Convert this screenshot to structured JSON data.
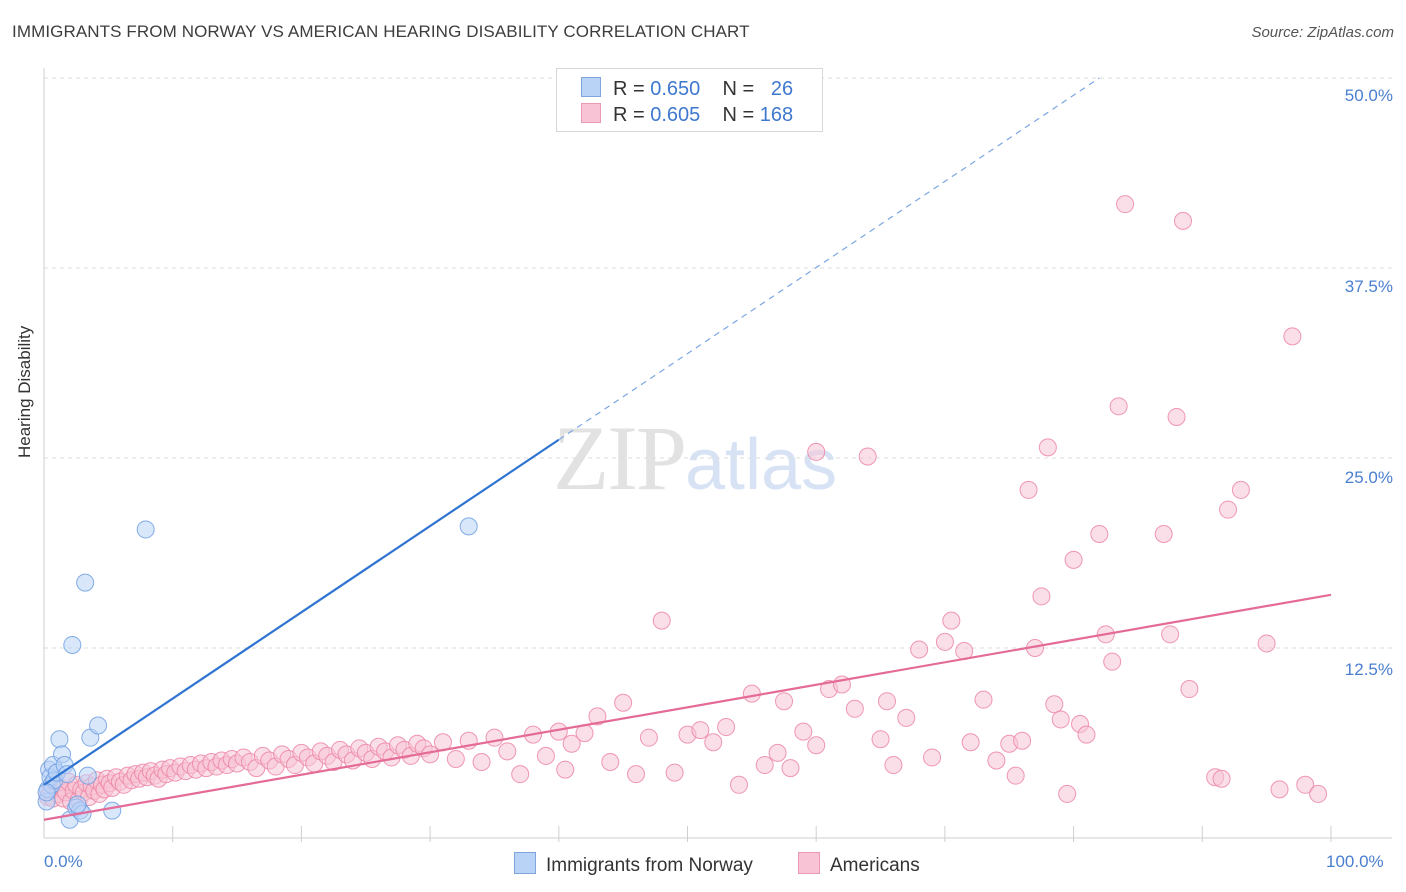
{
  "title": "IMMIGRANTS FROM NORWAY VS AMERICAN HEARING DISABILITY CORRELATION CHART",
  "source": "Source: ZipAtlas.com",
  "watermark": {
    "zip": "ZIP",
    "atlas": "atlas"
  },
  "legend_top": {
    "rows": [
      {
        "swatch_color": "#b9d3f7",
        "r_label": "R = ",
        "r_value": "0.650",
        "n_label": "N = ",
        "n_value": "26"
      },
      {
        "swatch_color": "#f8c4d5",
        "r_label": "R = ",
        "r_value": "0.605",
        "n_label": "N = ",
        "n_value": "168"
      }
    ]
  },
  "legend_bottom": [
    {
      "label": "Immigrants from Norway",
      "color": "#b9d3f7"
    },
    {
      "label": "Americans",
      "color": "#f8c4d5"
    }
  ],
  "chart_data": {
    "type": "scatter",
    "title": "IMMIGRANTS FROM NORWAY VS AMERICAN HEARING DISABILITY CORRELATION CHART",
    "xlabel": "",
    "ylabel": "Hearing Disability",
    "xlim": [
      0,
      100
    ],
    "ylim": [
      0,
      50
    ],
    "x_tick_labels": [
      "0.0%",
      "100.0%"
    ],
    "y_tick_labels": [
      "12.5%",
      "25.0%",
      "37.5%",
      "50.0%"
    ],
    "y_ticks": [
      12.5,
      25.0,
      37.5,
      50.0
    ],
    "grid": "horizontal dashed",
    "series": [
      {
        "name": "Immigrants from Norway",
        "color": "#6f9fe0",
        "fill": "#b9d3f7",
        "R": 0.65,
        "N": 26,
        "trend": {
          "x0": 0.0,
          "y0": 3.5,
          "x1": 40.0,
          "y1": 26.2,
          "dash_to_x": 82.0,
          "dash_to_y": 50.0
        },
        "points": [
          [
            0.2,
            2.4
          ],
          [
            0.3,
            3.2
          ],
          [
            0.4,
            4.5
          ],
          [
            0.5,
            4.0
          ],
          [
            0.6,
            3.5
          ],
          [
            0.7,
            4.8
          ],
          [
            0.8,
            3.8
          ],
          [
            1.0,
            4.3
          ],
          [
            1.2,
            6.5
          ],
          [
            1.4,
            5.5
          ],
          [
            1.6,
            4.8
          ],
          [
            1.8,
            4.2
          ],
          [
            2.0,
            1.2
          ],
          [
            2.2,
            12.7
          ],
          [
            2.5,
            2.0
          ],
          [
            2.8,
            1.8
          ],
          [
            3.0,
            1.6
          ],
          [
            3.2,
            16.8
          ],
          [
            3.4,
            4.1
          ],
          [
            3.6,
            6.6
          ],
          [
            4.2,
            7.4
          ],
          [
            5.3,
            1.8
          ],
          [
            7.9,
            20.3
          ],
          [
            33.0,
            20.5
          ],
          [
            0.2,
            3.0
          ],
          [
            2.6,
            2.2
          ]
        ]
      },
      {
        "name": "Americans",
        "color": "#ec86a6",
        "fill": "#f8c4d5",
        "R": 0.605,
        "N": 168,
        "trend": {
          "x0": 0.0,
          "y0": 1.2,
          "x1": 100.0,
          "y1": 16.0
        },
        "points": [
          [
            0.3,
            2.7
          ],
          [
            0.5,
            3.2
          ],
          [
            0.7,
            2.6
          ],
          [
            0.9,
            3.6
          ],
          [
            1.1,
            2.9
          ],
          [
            1.3,
            3.3
          ],
          [
            1.5,
            2.6
          ],
          [
            1.7,
            3.0
          ],
          [
            1.9,
            3.7
          ],
          [
            2.1,
            2.4
          ],
          [
            2.3,
            3.1
          ],
          [
            2.5,
            3.5
          ],
          [
            2.7,
            2.5
          ],
          [
            2.9,
            3.2
          ],
          [
            3.1,
            3.0
          ],
          [
            3.3,
            3.6
          ],
          [
            3.5,
            2.7
          ],
          [
            3.7,
            3.4
          ],
          [
            3.9,
            3.1
          ],
          [
            4.1,
            3.8
          ],
          [
            4.3,
            2.9
          ],
          [
            4.5,
            3.5
          ],
          [
            4.7,
            3.2
          ],
          [
            4.9,
            3.9
          ],
          [
            5.1,
            3.6
          ],
          [
            5.3,
            3.3
          ],
          [
            5.6,
            4.0
          ],
          [
            5.9,
            3.7
          ],
          [
            6.2,
            3.5
          ],
          [
            6.5,
            4.1
          ],
          [
            6.8,
            3.8
          ],
          [
            7.1,
            4.2
          ],
          [
            7.4,
            3.9
          ],
          [
            7.7,
            4.3
          ],
          [
            8.0,
            4.0
          ],
          [
            8.3,
            4.4
          ],
          [
            8.6,
            4.1
          ],
          [
            8.9,
            3.9
          ],
          [
            9.2,
            4.5
          ],
          [
            9.5,
            4.2
          ],
          [
            9.8,
            4.6
          ],
          [
            10.2,
            4.3
          ],
          [
            10.6,
            4.7
          ],
          [
            11.0,
            4.4
          ],
          [
            11.4,
            4.8
          ],
          [
            11.8,
            4.5
          ],
          [
            12.2,
            4.9
          ],
          [
            12.6,
            4.6
          ],
          [
            13.0,
            5.0
          ],
          [
            13.4,
            4.7
          ],
          [
            13.8,
            5.1
          ],
          [
            14.2,
            4.8
          ],
          [
            14.6,
            5.2
          ],
          [
            15.0,
            4.9
          ],
          [
            15.5,
            5.3
          ],
          [
            16.0,
            5.0
          ],
          [
            16.5,
            4.6
          ],
          [
            17.0,
            5.4
          ],
          [
            17.5,
            5.1
          ],
          [
            18.0,
            4.7
          ],
          [
            18.5,
            5.5
          ],
          [
            19.0,
            5.2
          ],
          [
            19.5,
            4.8
          ],
          [
            20.0,
            5.6
          ],
          [
            20.5,
            5.3
          ],
          [
            21.0,
            4.9
          ],
          [
            21.5,
            5.7
          ],
          [
            22.0,
            5.4
          ],
          [
            22.5,
            5.0
          ],
          [
            23.0,
            5.8
          ],
          [
            23.5,
            5.5
          ],
          [
            24.0,
            5.1
          ],
          [
            24.5,
            5.9
          ],
          [
            25.0,
            5.6
          ],
          [
            25.5,
            5.2
          ],
          [
            26.0,
            6.0
          ],
          [
            26.5,
            5.7
          ],
          [
            27.0,
            5.3
          ],
          [
            27.5,
            6.1
          ],
          [
            28.0,
            5.8
          ],
          [
            28.5,
            5.4
          ],
          [
            29.0,
            6.2
          ],
          [
            29.5,
            5.9
          ],
          [
            30.0,
            5.5
          ],
          [
            31.0,
            6.3
          ],
          [
            32.0,
            5.2
          ],
          [
            33.0,
            6.4
          ],
          [
            34.0,
            5.0
          ],
          [
            35.0,
            6.6
          ],
          [
            36.0,
            5.7
          ],
          [
            37.0,
            4.2
          ],
          [
            38.0,
            6.8
          ],
          [
            39.0,
            5.4
          ],
          [
            40.0,
            7.0
          ],
          [
            40.5,
            4.5
          ],
          [
            41.0,
            6.2
          ],
          [
            42.0,
            6.9
          ],
          [
            43.0,
            8.0
          ],
          [
            44.0,
            5.0
          ],
          [
            45.0,
            8.9
          ],
          [
            46.0,
            4.2
          ],
          [
            47.0,
            6.6
          ],
          [
            48.0,
            14.3
          ],
          [
            49.0,
            4.3
          ],
          [
            50.0,
            6.8
          ],
          [
            51.0,
            7.1
          ],
          [
            52.0,
            6.3
          ],
          [
            53.0,
            7.3
          ],
          [
            54.0,
            3.5
          ],
          [
            55.0,
            9.5
          ],
          [
            56.0,
            4.8
          ],
          [
            57.0,
            5.6
          ],
          [
            57.5,
            9.0
          ],
          [
            58.0,
            4.6
          ],
          [
            59.0,
            7.0
          ],
          [
            60.0,
            6.1
          ],
          [
            61.0,
            9.8
          ],
          [
            62.0,
            10.1
          ],
          [
            63.0,
            8.5
          ],
          [
            64.0,
            25.1
          ],
          [
            65.0,
            6.5
          ],
          [
            66.0,
            4.8
          ],
          [
            67.0,
            7.9
          ],
          [
            68.0,
            12.4
          ],
          [
            69.0,
            5.3
          ],
          [
            70.0,
            12.9
          ],
          [
            70.5,
            14.3
          ],
          [
            71.5,
            12.3
          ],
          [
            72.0,
            6.3
          ],
          [
            73.0,
            9.1
          ],
          [
            74.0,
            5.1
          ],
          [
            75.0,
            6.2
          ],
          [
            75.5,
            4.1
          ],
          [
            76.0,
            6.4
          ],
          [
            76.5,
            22.9
          ],
          [
            77.0,
            12.5
          ],
          [
            77.5,
            15.9
          ],
          [
            78.0,
            25.7
          ],
          [
            78.5,
            8.8
          ],
          [
            79.0,
            7.8
          ],
          [
            79.5,
            2.9
          ],
          [
            80.0,
            18.3
          ],
          [
            80.5,
            7.5
          ],
          [
            81.0,
            6.8
          ],
          [
            82.0,
            20.0
          ],
          [
            82.5,
            13.4
          ],
          [
            83.0,
            11.6
          ],
          [
            83.5,
            28.4
          ],
          [
            84.0,
            41.7
          ],
          [
            87.0,
            20.0
          ],
          [
            87.5,
            13.4
          ],
          [
            88.0,
            27.7
          ],
          [
            88.5,
            40.6
          ],
          [
            89.0,
            9.8
          ],
          [
            91.0,
            4.0
          ],
          [
            91.5,
            3.9
          ],
          [
            92.0,
            21.6
          ],
          [
            93.0,
            22.9
          ],
          [
            95.0,
            12.8
          ],
          [
            96.0,
            3.2
          ],
          [
            97.0,
            33.0
          ],
          [
            98.0,
            3.5
          ],
          [
            99.0,
            2.9
          ],
          [
            60.0,
            25.4
          ],
          [
            65.5,
            9.0
          ]
        ]
      }
    ]
  }
}
